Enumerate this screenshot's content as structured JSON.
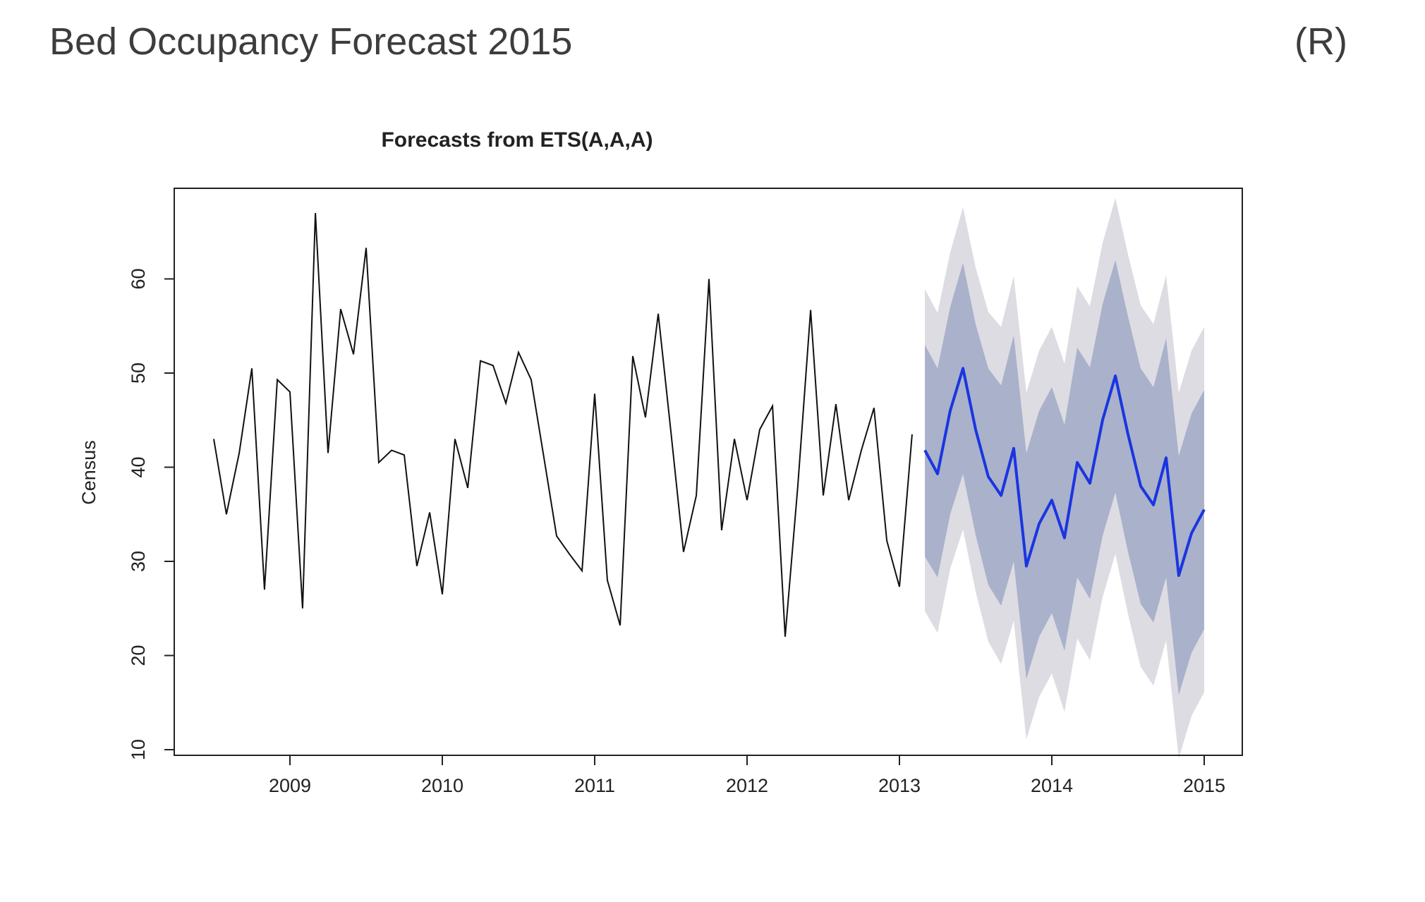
{
  "slide": {
    "title": "Bed Occupancy Forecast 2015",
    "tag": "(R)"
  },
  "chart_data": {
    "type": "line",
    "title": "Forecasts from ETS(A,A,A)",
    "xlabel": "",
    "ylabel": "Census",
    "xlim": [
      2008.25,
      2015.25
    ],
    "ylim": [
      10,
      70
    ],
    "x_ticks": [
      2009,
      2010,
      2011,
      2012,
      2013,
      2014,
      2015
    ],
    "y_ticks": [
      10,
      20,
      30,
      40,
      50,
      60
    ],
    "grid": false,
    "legend": "none",
    "colors": {
      "observed": "#111111",
      "forecast": "#1a35e0",
      "pi80": "#aab1cb",
      "pi95": "#dcdce2"
    },
    "series": [
      {
        "role": "observed",
        "x": [
          2008.5,
          2008.583,
          2008.667,
          2008.75,
          2008.833,
          2008.917,
          2009.0,
          2009.083,
          2009.167,
          2009.25,
          2009.333,
          2009.417,
          2009.5,
          2009.583,
          2009.667,
          2009.75,
          2009.833,
          2009.917,
          2010.0,
          2010.083,
          2010.167,
          2010.25,
          2010.333,
          2010.417,
          2010.5,
          2010.583,
          2010.667,
          2010.75,
          2010.833,
          2010.917,
          2011.0,
          2011.083,
          2011.167,
          2011.25,
          2011.333,
          2011.417,
          2011.5,
          2011.583,
          2011.667,
          2011.75,
          2011.833,
          2011.917,
          2012.0,
          2012.083,
          2012.167,
          2012.25,
          2012.333,
          2012.417,
          2012.5,
          2012.583,
          2012.667,
          2012.75,
          2012.833,
          2012.917,
          2013.0,
          2013.083
        ],
        "values": [
          43,
          35,
          41.5,
          50.5,
          27,
          49.3,
          48,
          25,
          67,
          41.5,
          56.8,
          52,
          63.3,
          40.5,
          41.8,
          41.3,
          29.5,
          35.2,
          26.5,
          43,
          37.8,
          51.3,
          50.8,
          46.8,
          52.2,
          49.3,
          41,
          32.7,
          30.8,
          29,
          47.8,
          28,
          23.2,
          51.8,
          45.3,
          56.3,
          43.8,
          31,
          37,
          60,
          33.3,
          43,
          36.5,
          44,
          46.5,
          22,
          38,
          56.7,
          37,
          46.7,
          36.5,
          41.8,
          46.3,
          32.2,
          27.3,
          43.5
        ]
      },
      {
        "role": "forecast",
        "x": [
          2013.167,
          2013.25,
          2013.333,
          2013.417,
          2013.5,
          2013.583,
          2013.667,
          2013.75,
          2013.833,
          2013.917,
          2014.0,
          2014.083,
          2014.167,
          2014.25,
          2014.333,
          2014.417,
          2014.5,
          2014.583,
          2014.667,
          2014.75,
          2014.833,
          2014.917,
          2015.0
        ],
        "values": [
          41.8,
          39.3,
          46,
          50.5,
          44,
          39,
          37,
          42,
          29.5,
          34,
          36.5,
          32.5,
          40.5,
          38.3,
          45,
          49.7,
          43.5,
          38,
          36,
          41,
          28.5,
          33,
          35.5
        ],
        "lo80": [
          30.5,
          28.3,
          35,
          39.3,
          32.8,
          27.5,
          25.3,
          30,
          17.5,
          22,
          24.5,
          20.5,
          28.3,
          26,
          32.7,
          37.3,
          31,
          25.5,
          23.5,
          28.3,
          15.8,
          20.3,
          22.8
        ],
        "hi80": [
          53,
          50.5,
          57,
          61.7,
          55.2,
          50.5,
          48.7,
          54,
          41.5,
          46,
          48.5,
          44.5,
          52.7,
          50.6,
          57.3,
          62,
          56,
          50.5,
          48.5,
          53.7,
          41.2,
          45.7,
          48.2
        ],
        "lo95": [
          24.7,
          22.4,
          29.2,
          33.4,
          26.8,
          21.5,
          19.1,
          23.7,
          11.1,
          15.6,
          18.1,
          14,
          21.8,
          19.5,
          26.2,
          30.8,
          24.4,
          18.8,
          16.8,
          21.6,
          9.1,
          13.6,
          16.1
        ],
        "hi95": [
          58.9,
          56.4,
          62.8,
          67.6,
          61.2,
          56.5,
          54.9,
          60.3,
          47.9,
          52.4,
          54.9,
          51,
          59.2,
          57.1,
          63.8,
          68.6,
          62.6,
          57.2,
          55.2,
          60.4,
          47.9,
          52.4,
          54.9
        ]
      }
    ]
  }
}
